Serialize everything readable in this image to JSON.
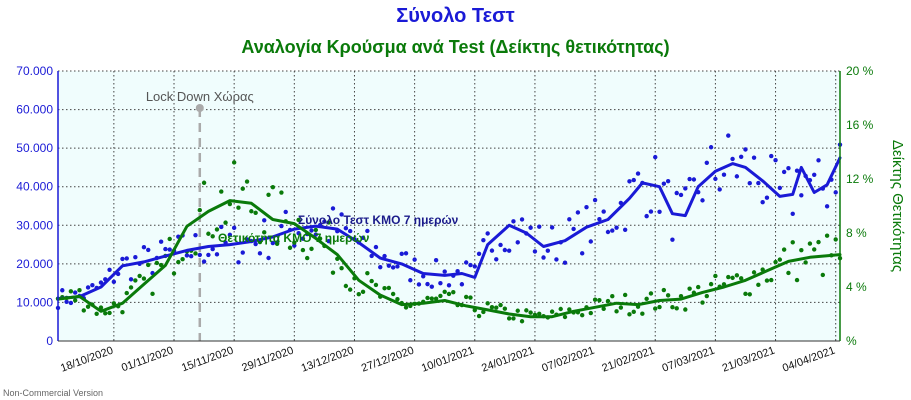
{
  "chart_data": {
    "type": "line",
    "title": "Σύνολο Τεστ",
    "subtitle": "Αναλογία Κρούσμα ανά Test (Δείκτης θετικότητας)",
    "ylabel_right": "Δείκτης Θετικότητας",
    "watermark": "Non-Commercial Version",
    "annotation": "Lock Down Χώρας",
    "annotation_x": "2020-11-07",
    "x_start": "2020-10-05",
    "x_end": "2021-04-05",
    "xticks": [
      "18/10/2020",
      "01/11/2020",
      "15/11/2020",
      "29/11/2020",
      "13/12/2020",
      "27/12/2020",
      "10/01/2021",
      "24/01/2021",
      "07/02/2021",
      "21/02/2021",
      "07/03/2021",
      "21/03/2021",
      "04/04/2021"
    ],
    "yticks_left": [
      "0",
      "10.000",
      "20.000",
      "30.000",
      "40.000",
      "50.000",
      "60.000",
      "70.000"
    ],
    "yticks_right": [
      "%",
      "4 %",
      "8 %",
      "12 %",
      "16 %",
      "20 %"
    ],
    "ylim_left": [
      0,
      70000
    ],
    "ylim_right": [
      0,
      20
    ],
    "grid": true,
    "colors": {
      "tests": "#1a1ad6",
      "positivity": "#0a7a0a",
      "annotation": "#aaaaaa",
      "plot_bg": "#f0fdfd",
      "grid": "#444444"
    },
    "series": [
      {
        "name": "Σύνολο Τεστ ΚΜΟ 7 ημερών",
        "axis": "left",
        "x": [
          "2020-10-05",
          "2020-10-10",
          "2020-10-15",
          "2020-10-20",
          "2020-10-25",
          "2020-10-30",
          "2020-11-04",
          "2020-11-09",
          "2020-11-14",
          "2020-11-19",
          "2020-11-24",
          "2020-11-29",
          "2020-12-04",
          "2020-12-09",
          "2020-12-14",
          "2020-12-19",
          "2020-12-24",
          "2020-12-29",
          "2021-01-03",
          "2021-01-07",
          "2021-01-10",
          "2021-01-13",
          "2021-01-18",
          "2021-01-22",
          "2021-01-26",
          "2021-01-31",
          "2021-02-05",
          "2021-02-10",
          "2021-02-15",
          "2021-02-18",
          "2021-02-22",
          "2021-02-25",
          "2021-02-28",
          "2021-03-03",
          "2021-03-07",
          "2021-03-11",
          "2021-03-14",
          "2021-03-18",
          "2021-03-22",
          "2021-03-25",
          "2021-03-27",
          "2021-03-30",
          "2021-04-02",
          "2021-04-05"
        ],
        "values": [
          11000,
          11500,
          14000,
          19500,
          20500,
          22000,
          23500,
          24500,
          25000,
          25800,
          27000,
          29000,
          29800,
          29000,
          25500,
          21500,
          20000,
          17500,
          17000,
          17500,
          16500,
          25000,
          30000,
          28000,
          24500,
          26000,
          29500,
          31500,
          37000,
          41000,
          40000,
          33000,
          32500,
          40000,
          44000,
          46000,
          45000,
          41500,
          37500,
          38000,
          45000,
          38500,
          40500,
          47500
        ]
      },
      {
        "name": "Θετικότητα ΚΜΟ 7 ημερών",
        "axis": "right",
        "x": [
          "2020-10-05",
          "2020-10-10",
          "2020-10-15",
          "2020-10-20",
          "2020-10-25",
          "2020-10-30",
          "2020-11-04",
          "2020-11-09",
          "2020-11-14",
          "2020-11-19",
          "2020-11-24",
          "2020-11-29",
          "2020-12-04",
          "2020-12-09",
          "2020-12-14",
          "2020-12-19",
          "2020-12-24",
          "2020-12-29",
          "2021-01-03",
          "2021-01-08",
          "2021-01-13",
          "2021-01-18",
          "2021-01-23",
          "2021-01-28",
          "2021-02-02",
          "2021-02-07",
          "2021-02-12",
          "2021-02-17",
          "2021-02-22",
          "2021-02-27",
          "2021-03-04",
          "2021-03-09",
          "2021-03-14",
          "2021-03-19",
          "2021-03-24",
          "2021-03-29",
          "2021-04-05"
        ],
        "values": [
          3.1,
          3.3,
          2.2,
          2.8,
          4.2,
          5.6,
          8.5,
          9.6,
          10.4,
          10.2,
          9.0,
          8.7,
          7.6,
          6.4,
          4.5,
          3.4,
          2.7,
          2.8,
          3.0,
          2.6,
          2.3,
          2.0,
          1.8,
          1.8,
          2.2,
          2.5,
          2.8,
          2.7,
          3.0,
          3.1,
          3.6,
          4.0,
          4.5,
          5.2,
          5.9,
          6.2,
          6.4
        ]
      }
    ]
  }
}
